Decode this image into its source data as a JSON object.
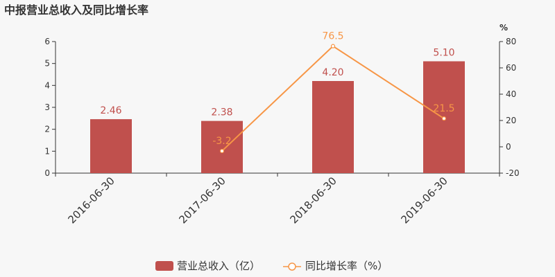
{
  "chart_data": {
    "type": "bar",
    "title": "中报营业总收入及同比增长率",
    "categories": [
      "2016-06-30",
      "2017-06-30",
      "2018-06-30",
      "2019-06-30"
    ],
    "y_left": {
      "ticks": [
        "0",
        "1",
        "2",
        "3",
        "4",
        "5",
        "6"
      ],
      "range": [
        0,
        6
      ]
    },
    "y_right": {
      "unit": "%",
      "ticks": [
        "-20",
        "0",
        "20",
        "40",
        "60",
        "80"
      ],
      "range": [
        -20,
        80
      ]
    },
    "series": [
      {
        "name": "营业总收入（亿）",
        "type": "bar",
        "axis": "left",
        "values": [
          2.46,
          2.38,
          4.2,
          5.1
        ],
        "labels": [
          "2.46",
          "2.38",
          "4.20",
          "5.10"
        ]
      },
      {
        "name": "同比增长率（%）",
        "type": "line",
        "axis": "right",
        "x": [
          "2017-06-30",
          "2018-06-30",
          "2019-06-30"
        ],
        "values": [
          -3.2,
          76.5,
          21.5
        ],
        "labels": [
          "-3.2",
          "76.5",
          "21.5"
        ]
      }
    ],
    "legend": "bottom",
    "colors": {
      "bar": "#c0504d",
      "line": "#f79646",
      "axis": "#333333",
      "text": "#333333"
    }
  }
}
